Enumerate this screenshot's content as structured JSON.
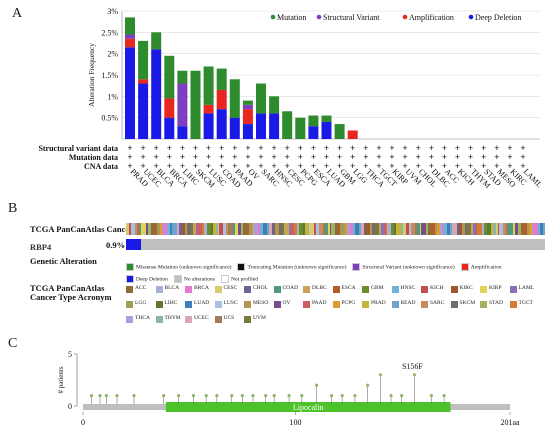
{
  "panel_letters": [
    "A",
    "B",
    "C"
  ],
  "colors": {
    "mutation": "#2e8b2e",
    "structural": "#7b3fbf",
    "amplification": "#e8281f",
    "deletion": "#1a1ae6",
    "grid": "#dcdcdc",
    "gray": "#bfbfbf",
    "lollipop": "#8fb86a",
    "lipocalin": "#4cc32b"
  },
  "chart_data": [
    {
      "type": "bar",
      "ylabel": "Alteration Frequency",
      "yticks": [
        "0.5%",
        "1%",
        "1.5%",
        "2%",
        "2.5%",
        "3%"
      ],
      "ylim": [
        0,
        3
      ],
      "legend": [
        {
          "name": "Mutation",
          "color": "#2e8b2e"
        },
        {
          "name": "Structural Variant",
          "color": "#7b3fbf"
        },
        {
          "name": "Amplification",
          "color": "#e8281f"
        },
        {
          "name": "Deep Deletion",
          "color": "#1a1ae6"
        }
      ],
      "categories": [
        "PRAD",
        "UCEC",
        "BLCA",
        "BRCA",
        "LIHC",
        "SKCM",
        "LUSC",
        "COAD",
        "PAAD",
        "OV",
        "SARC",
        "HNSC",
        "CESC",
        "PCPG",
        "ESCA",
        "LUAD",
        "GBM",
        "LGG",
        "THCA",
        "TGCT",
        "KIRP",
        "UVM",
        "CHOL",
        "DLBC",
        "ACC",
        "KICH",
        "THYM",
        "STAD",
        "MESO",
        "KIRC",
        "LAML"
      ],
      "series": [
        {
          "name": "Mutation",
          "values": [
            0.4,
            0.9,
            0.4,
            1.0,
            0.3,
            1.6,
            0.9,
            0.5,
            0.9,
            0.1,
            0.7,
            0.4,
            0.65,
            0.5,
            0.25,
            0.15,
            0.35,
            0,
            0,
            0,
            0,
            0,
            0,
            0,
            0,
            0,
            0,
            0,
            0,
            0,
            0
          ]
        },
        {
          "name": "Structural Variant",
          "values": [
            0.1,
            0,
            0,
            0,
            1.0,
            0,
            0,
            0,
            0,
            0.1,
            0,
            0,
            0,
            0,
            0,
            0,
            0,
            0,
            0,
            0,
            0,
            0,
            0,
            0,
            0,
            0,
            0,
            0,
            0,
            0,
            0
          ]
        },
        {
          "name": "Amplification",
          "values": [
            0.2,
            0.1,
            0,
            0.45,
            0,
            0,
            0.2,
            0.45,
            0,
            0.35,
            0,
            0,
            0,
            0,
            0,
            0,
            0,
            0.2,
            0,
            0,
            0,
            0,
            0,
            0,
            0,
            0,
            0,
            0,
            0,
            0,
            0
          ]
        },
        {
          "name": "Deep Deletion",
          "values": [
            2.15,
            1.3,
            2.1,
            0.5,
            0.3,
            0,
            0.6,
            0.7,
            0.5,
            0.35,
            0.6,
            0.6,
            0,
            0,
            0.3,
            0.4,
            0,
            0,
            0,
            0,
            0,
            0,
            0,
            0,
            0,
            0,
            0,
            0,
            0,
            0,
            0
          ]
        }
      ],
      "row_labels": [
        "Structural variant data",
        "Mutation data",
        "CNA data"
      ],
      "row_mark": "+"
    },
    {
      "type": "table",
      "title": "TCGA PanCanAtlas Cancer Type",
      "gene": "RBP4",
      "gene_pct": "0.9%",
      "altered_fraction": 0.009,
      "alteration_label": "Genetic Alteration",
      "alteration_legend": [
        {
          "name": "Missense Mutation (unknown significance)",
          "color": "#2e8b2e"
        },
        {
          "name": "Truncating Mutation (unknown significance)",
          "color": "#111111"
        },
        {
          "name": "Structural Variant (unknown significance)",
          "color": "#7b3fbf"
        },
        {
          "name": "Amplification",
          "color": "#e8281f"
        },
        {
          "name": "Deep Deletion",
          "color": "#1a1ae6"
        },
        {
          "name": "No alterations",
          "color": "#bfbfbf"
        },
        {
          "name": "Not profiled",
          "color": "#ffffff"
        }
      ],
      "cancer_type_label": "TCGA PanCanAtlas Cancer Type Acronym",
      "cancer_types": [
        {
          "name": "ACC",
          "color": "#8a6d3b"
        },
        {
          "name": "BLCA",
          "color": "#a7b0d7"
        },
        {
          "name": "BRCA",
          "color": "#e37ad0"
        },
        {
          "name": "CESC",
          "color": "#d7cc6b"
        },
        {
          "name": "CHOL",
          "color": "#666699"
        },
        {
          "name": "COAD",
          "color": "#4f9a7f"
        },
        {
          "name": "DLBC",
          "color": "#c9a35c"
        },
        {
          "name": "ESCA",
          "color": "#b55e2b"
        },
        {
          "name": "GBM",
          "color": "#6c8d2f"
        },
        {
          "name": "HNSC",
          "color": "#6fb3d6"
        },
        {
          "name": "KICH",
          "color": "#c44e52"
        },
        {
          "name": "KIRC",
          "color": "#9e5a2f"
        },
        {
          "name": "KIRP",
          "color": "#e0d35b"
        },
        {
          "name": "LAML",
          "color": "#8c6fb8"
        },
        {
          "name": "LGG",
          "color": "#a09c56"
        },
        {
          "name": "LIHC",
          "color": "#5d7a2f"
        },
        {
          "name": "LUAD",
          "color": "#3e7fb8"
        },
        {
          "name": "LUSC",
          "color": "#aac0e0"
        },
        {
          "name": "MESO",
          "color": "#b49455"
        },
        {
          "name": "OV",
          "color": "#7a4d8c"
        },
        {
          "name": "PAAD",
          "color": "#c95f5f"
        },
        {
          "name": "PCPG",
          "color": "#df9b2d"
        },
        {
          "name": "PRAD",
          "color": "#c7b33c"
        },
        {
          "name": "READ",
          "color": "#6fa3c9"
        },
        {
          "name": "SARC",
          "color": "#ca8c5d"
        },
        {
          "name": "SKCM",
          "color": "#6e6e6e"
        },
        {
          "name": "STAD",
          "color": "#9db35f"
        },
        {
          "name": "TGCT",
          "color": "#d57b2f"
        },
        {
          "name": "THCA",
          "color": "#b19cd9"
        },
        {
          "name": "THYM",
          "color": "#8fb3a6"
        },
        {
          "name": "UCEC",
          "color": "#d9a6b3"
        },
        {
          "name": "UCS",
          "color": "#a07a5c"
        },
        {
          "name": "UVM",
          "color": "#7a7a3a"
        }
      ]
    },
    {
      "type": "scatter",
      "ylabel": "# patients",
      "yticks": [
        "0",
        "5"
      ],
      "ylim": [
        0,
        5
      ],
      "xticks": [
        "0",
        "100",
        "201aa"
      ],
      "xlim": [
        0,
        201
      ],
      "domain": {
        "name": "Lipocalin",
        "start": 39,
        "end": 173
      },
      "annotation": "S156F",
      "x": [
        4,
        8,
        11,
        16,
        24,
        38,
        45,
        52,
        58,
        63,
        70,
        75,
        80,
        86,
        90,
        97,
        103,
        110,
        117,
        122,
        128,
        134,
        140,
        145,
        150,
        156,
        164,
        170
      ],
      "values": [
        1,
        1,
        1,
        1,
        1,
        1,
        1,
        1,
        1,
        1,
        1,
        1,
        1,
        1,
        1,
        1,
        1,
        2,
        1,
        1,
        1,
        2,
        3,
        1,
        1,
        3,
        1,
        1
      ]
    }
  ]
}
